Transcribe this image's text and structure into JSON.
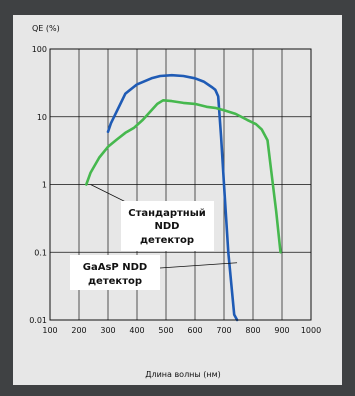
{
  "chart_data": {
    "type": "line",
    "y_scale": "log",
    "xlim": [
      100,
      1000
    ],
    "ylim": [
      0.01,
      100
    ],
    "grid": true,
    "legend": "none",
    "xlabel": "Длина волны (нм)",
    "ylabel": "QE (%)",
    "x_ticks": [
      "100",
      "200",
      "300",
      "400",
      "500",
      "600",
      "700",
      "800",
      "900",
      "1000"
    ],
    "y_ticks": [
      "100",
      "10",
      "1",
      "0.1",
      "0.01"
    ],
    "series": [
      {
        "color": "#1f5bb5",
        "points": [
          [
            300,
            6
          ],
          [
            310,
            8
          ],
          [
            330,
            12
          ],
          [
            360,
            22
          ],
          [
            400,
            30
          ],
          [
            450,
            37
          ],
          [
            480,
            40
          ],
          [
            520,
            41
          ],
          [
            560,
            40
          ],
          [
            600,
            37
          ],
          [
            630,
            33
          ],
          [
            660,
            27
          ],
          [
            670,
            25
          ],
          [
            680,
            20
          ],
          [
            690,
            5
          ],
          [
            700,
            1
          ],
          [
            715,
            0.1
          ],
          [
            735,
            0.012
          ],
          [
            745,
            0.01
          ]
        ]
      },
      {
        "color": "#46b84e",
        "points": [
          [
            225,
            1
          ],
          [
            240,
            1.5
          ],
          [
            270,
            2.5
          ],
          [
            300,
            3.6
          ],
          [
            330,
            4.6
          ],
          [
            360,
            5.8
          ],
          [
            390,
            6.9
          ],
          [
            420,
            9
          ],
          [
            450,
            12.5
          ],
          [
            470,
            15.5
          ],
          [
            490,
            17.5
          ],
          [
            520,
            17
          ],
          [
            560,
            16
          ],
          [
            600,
            15.5
          ],
          [
            640,
            14
          ],
          [
            670,
            13.5
          ],
          [
            700,
            12.5
          ],
          [
            740,
            11
          ],
          [
            780,
            9
          ],
          [
            810,
            7.8
          ],
          [
            830,
            6.5
          ],
          [
            850,
            4.5
          ],
          [
            860,
            2
          ],
          [
            880,
            0.4
          ],
          [
            895,
            0.1
          ]
        ]
      }
    ],
    "annotations": [
      {
        "lines": [
          "Стандартный",
          "NDD",
          "детектор"
        ],
        "arrow_to": [
          240,
          1
        ]
      },
      {
        "lines": [
          "GaAsP NDD",
          "детектор"
        ],
        "arrow_to": [
          745,
          0.07
        ]
      }
    ]
  }
}
